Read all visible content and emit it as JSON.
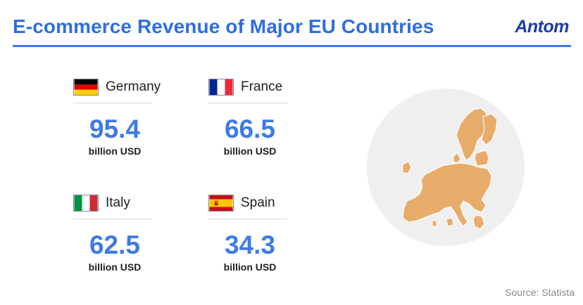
{
  "header": {
    "title": "E-commerce Revenue of Major EU Countries",
    "logo": "Antom"
  },
  "countries": [
    {
      "name": "Germany",
      "value": "95.4",
      "unit": "billion USD",
      "flag_icon": "germany-flag-icon"
    },
    {
      "name": "France",
      "value": "66.5",
      "unit": "billion USD",
      "flag_icon": "france-flag-icon"
    },
    {
      "name": "Italy",
      "value": "62.5",
      "unit": "billion USD",
      "flag_icon": "italy-flag-icon"
    },
    {
      "name": "Spain",
      "value": "34.3",
      "unit": "billion USD",
      "flag_icon": "spain-flag-icon"
    }
  ],
  "source": "Source: Statista",
  "colors": {
    "title": "#2f6ee0",
    "value": "#3d7be6",
    "logo": "#1c3da8",
    "map_land": "#e8ac6a",
    "globe": "#efefef"
  }
}
